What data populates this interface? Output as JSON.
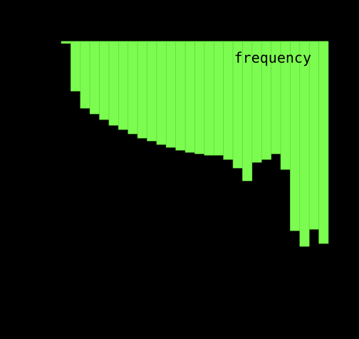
{
  "colors": {
    "background": "#000000",
    "bar_fill": "#7CFC50",
    "bar_edge": "#5FD23C",
    "legend_text": "#000000"
  },
  "chart_data": {
    "type": "bar",
    "orientation": "hanging-from-top",
    "legend_placement": "top-right",
    "series": [
      {
        "name": "frequency",
        "values": [
          1.5,
          35,
          47,
          51,
          55,
          59,
          62,
          65,
          68,
          70,
          72.5,
          74.5,
          76.5,
          78,
          79,
          80,
          80,
          83,
          89,
          98,
          85,
          83,
          79,
          90,
          133,
          144,
          132,
          142
        ]
      }
    ],
    "ylim": [
      0,
      145
    ],
    "title": "",
    "xlabel": "",
    "ylabel": "",
    "grid": false
  }
}
